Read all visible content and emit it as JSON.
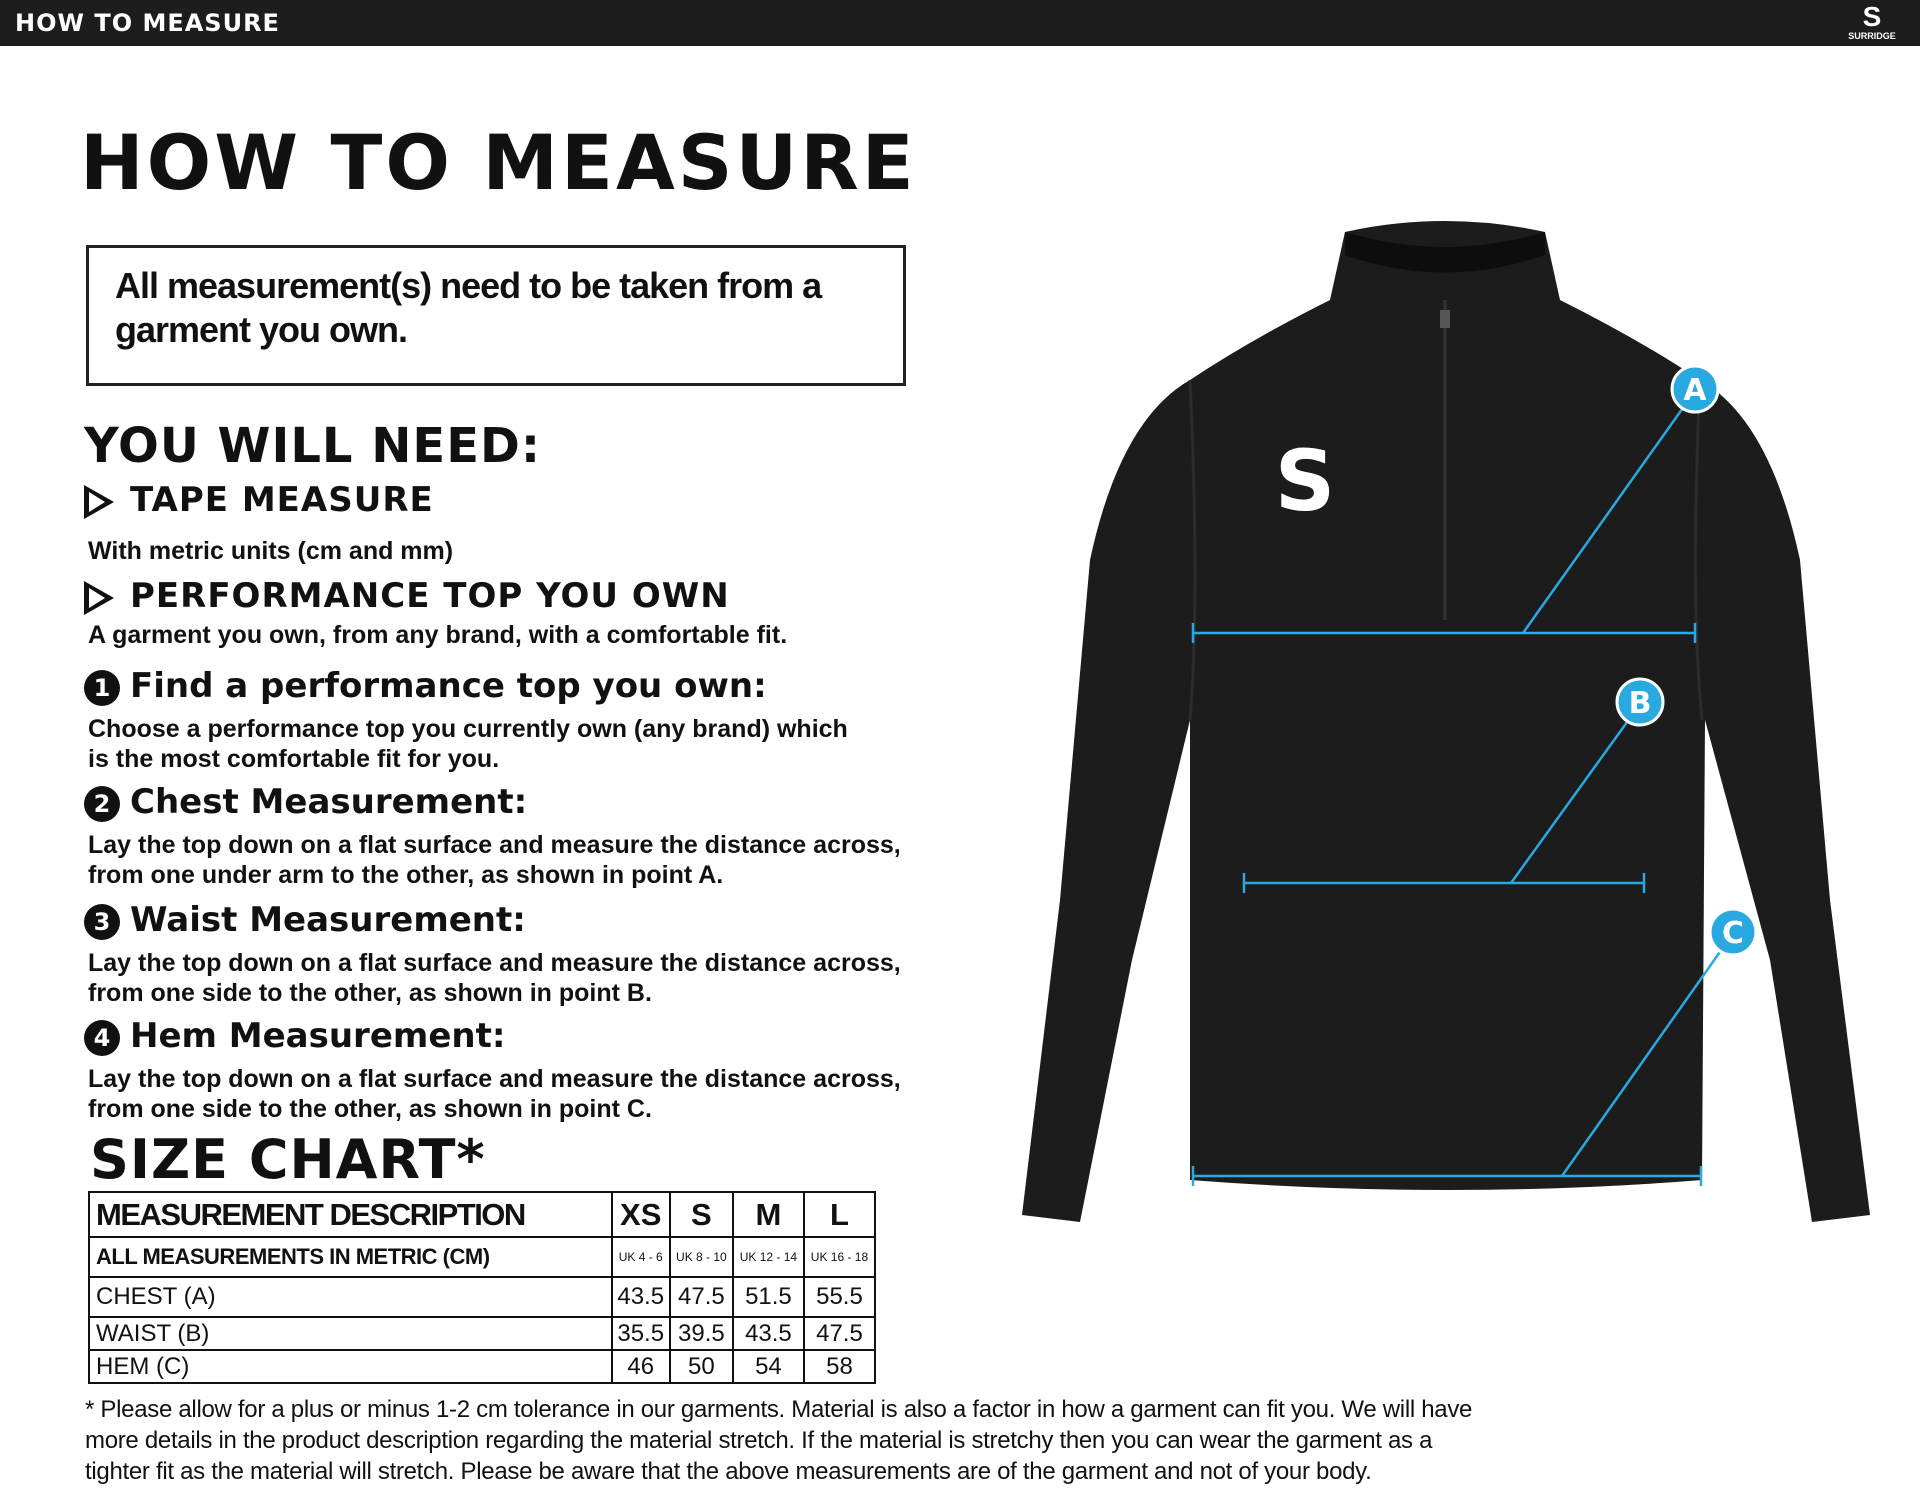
{
  "header": {
    "title": "HOW TO MEASURE",
    "logo_text": "SURRIDGE",
    "logo_mark": "S"
  },
  "page_title": "HOW TO MEASURE",
  "notice": "All measurement(s) need to be taken from a garment you own.",
  "you_will_need": {
    "title": "YOU WILL NEED:",
    "items": [
      {
        "title": "TAPE MEASURE",
        "desc": "With metric units (cm and mm)"
      },
      {
        "title": "PERFORMANCE TOP YOU OWN",
        "desc": "A garment you own, from any brand, with a comfortable fit."
      }
    ]
  },
  "steps": [
    {
      "num": "1",
      "title": "Find a performance top you own:",
      "lines": [
        "Choose a performance top you currently own (any brand) which",
        "is the most comfortable fit for you."
      ]
    },
    {
      "num": "2",
      "title": "Chest Measurement:",
      "lines": [
        "Lay the top down on a flat surface and measure the distance across,",
        "from one under arm to the other, as shown in point A."
      ]
    },
    {
      "num": "3",
      "title": "Waist Measurement:",
      "lines": [
        "Lay the top down on a flat surface and measure the distance across,",
        "from one side to the other, as shown in point B."
      ]
    },
    {
      "num": "4",
      "title": "Hem Measurement:",
      "lines": [
        "Lay the top down on a flat surface and measure the distance across,",
        "from one side to the other, as shown in point C."
      ]
    }
  ],
  "size_chart": {
    "title": "SIZE CHART*",
    "header": [
      "MEASUREMENT DESCRIPTION",
      "XS",
      "S",
      "M",
      "L"
    ],
    "units_row": [
      "ALL MEASUREMENTS IN METRIC (CM)",
      "UK 4 - 6",
      "UK 8 - 10",
      "UK 12 - 14",
      "UK 16 - 18"
    ],
    "rows": [
      [
        "CHEST (A)",
        "43.5",
        "47.5",
        "51.5",
        "55.5"
      ],
      [
        "WAIST (B)",
        "35.5",
        "39.5",
        "43.5",
        "47.5"
      ],
      [
        "HEM (C)",
        "46",
        "50",
        "54",
        "58"
      ]
    ]
  },
  "footnote": [
    "* Please allow for a plus or minus 1-2 cm tolerance in our garments. Material is also a factor in how a garment can fit you. We will have",
    "more details in the product description regarding the material stretch.  If the material is stretchy then you can wear the garment as a",
    "tighter fit as the material will stretch.  Please be aware that the above measurements are of the garment and not of your body."
  ],
  "diagram": {
    "points": [
      "A",
      "B",
      "C"
    ],
    "accent": "#29a9e0",
    "garment_color": "#1c1c1c",
    "garment_logo": "S"
  }
}
